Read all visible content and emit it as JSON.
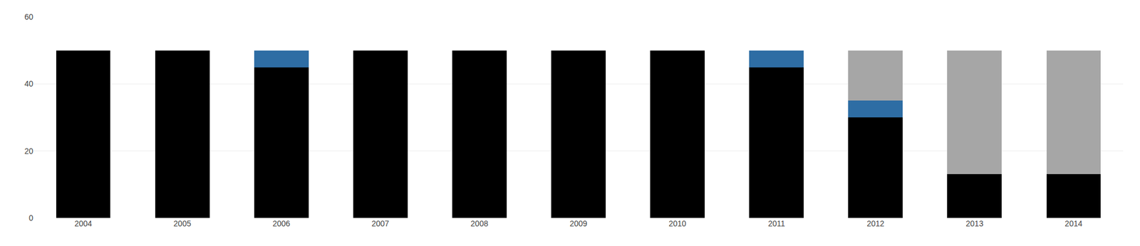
{
  "chart_data": {
    "type": "bar",
    "stacked": true,
    "categories": [
      "2004",
      "2005",
      "2006",
      "2007",
      "2008",
      "2009",
      "2010",
      "2011",
      "2012",
      "2013",
      "2014"
    ],
    "series": [
      {
        "color": "#000000",
        "values": [
          50,
          50,
          45,
          50,
          50,
          50,
          50,
          45,
          30,
          13,
          13
        ]
      },
      {
        "color": "#2e6da4",
        "values": [
          0,
          0,
          5,
          0,
          0,
          0,
          0,
          5,
          5,
          0,
          0
        ]
      },
      {
        "color": "#a6a6a6",
        "values": [
          0,
          0,
          0,
          0,
          0,
          0,
          0,
          0,
          15,
          37,
          37
        ]
      }
    ],
    "ylim": [
      0,
      60
    ],
    "yticks": [
      0,
      20,
      40,
      60
    ],
    "grid": true
  }
}
